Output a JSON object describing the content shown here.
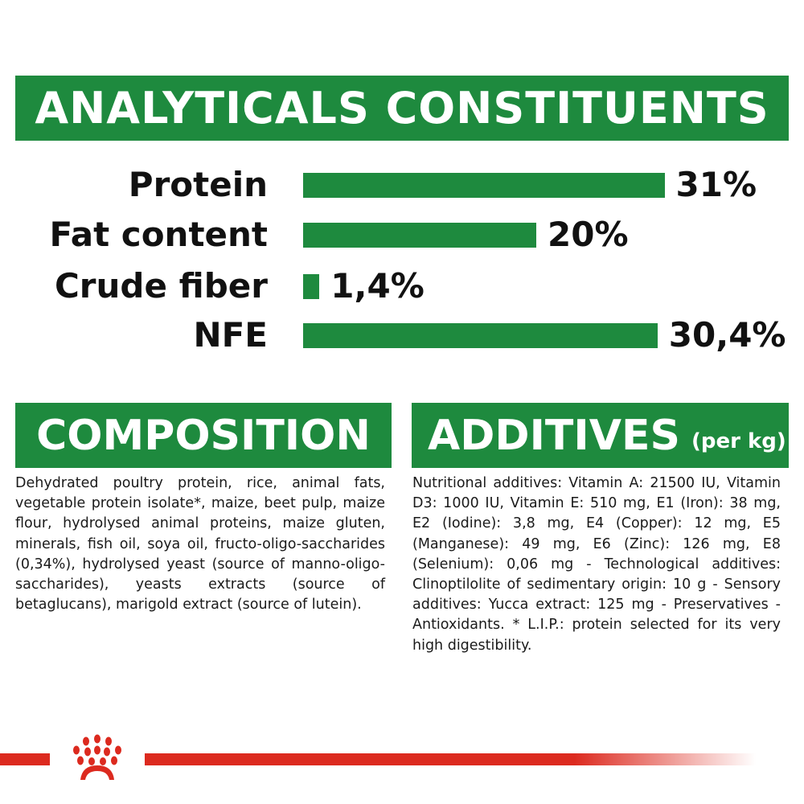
{
  "title": "ANALYTICALS CONSTITUENTS",
  "chart_data": {
    "type": "bar",
    "orientation": "horizontal",
    "categories": [
      "Protein",
      "Fat content",
      "Crude fiber",
      "NFE"
    ],
    "values": [
      31,
      20,
      1.4,
      30.4
    ],
    "value_labels": [
      "31%",
      "20%",
      "1,4%",
      "30,4%"
    ],
    "unit": "%",
    "color": "#1e8a3e"
  },
  "composition": {
    "heading": "COMPOSITION",
    "text": "Dehydrated poultry protein, rice, animal fats, vegetable protein isolate*, maize, beet pulp, maize flour, hydrolysed animal proteins, maize gluten, minerals, fish oil, soya oil, fructo-oligo-saccharides (0,34%), hydrolysed yeast (source of manno-oligo-saccharides), yeasts extracts (source of betaglucans), marigold extract (source of lutein)."
  },
  "additives": {
    "heading": "ADDITIVES",
    "heading_suffix": "(per kg)",
    "text": "Nutritional additives: Vitamin A: 21500 IU, Vitamin D3: 1000 IU, Vitamin E: 510 mg, E1 (Iron): 38 mg, E2 (Iodine): 3,8 mg, E4 (Copper): 12 mg, E5 (Manganese): 49 mg, E6 (Zinc): 126 mg, E8 (Selenium): 0,06 mg - Technological additives: Clinoptilolite of sedimentary origin: 10 g - Sensory additives: Yucca extract: 125 mg - Preservatives - Antioxidants. * L.I.P.: protein selected for its very high digestibility."
  },
  "colors": {
    "green": "#1e8a3e",
    "red": "#dc2a1f"
  },
  "logo": {
    "icon": "royal-canin-crown-icon"
  }
}
